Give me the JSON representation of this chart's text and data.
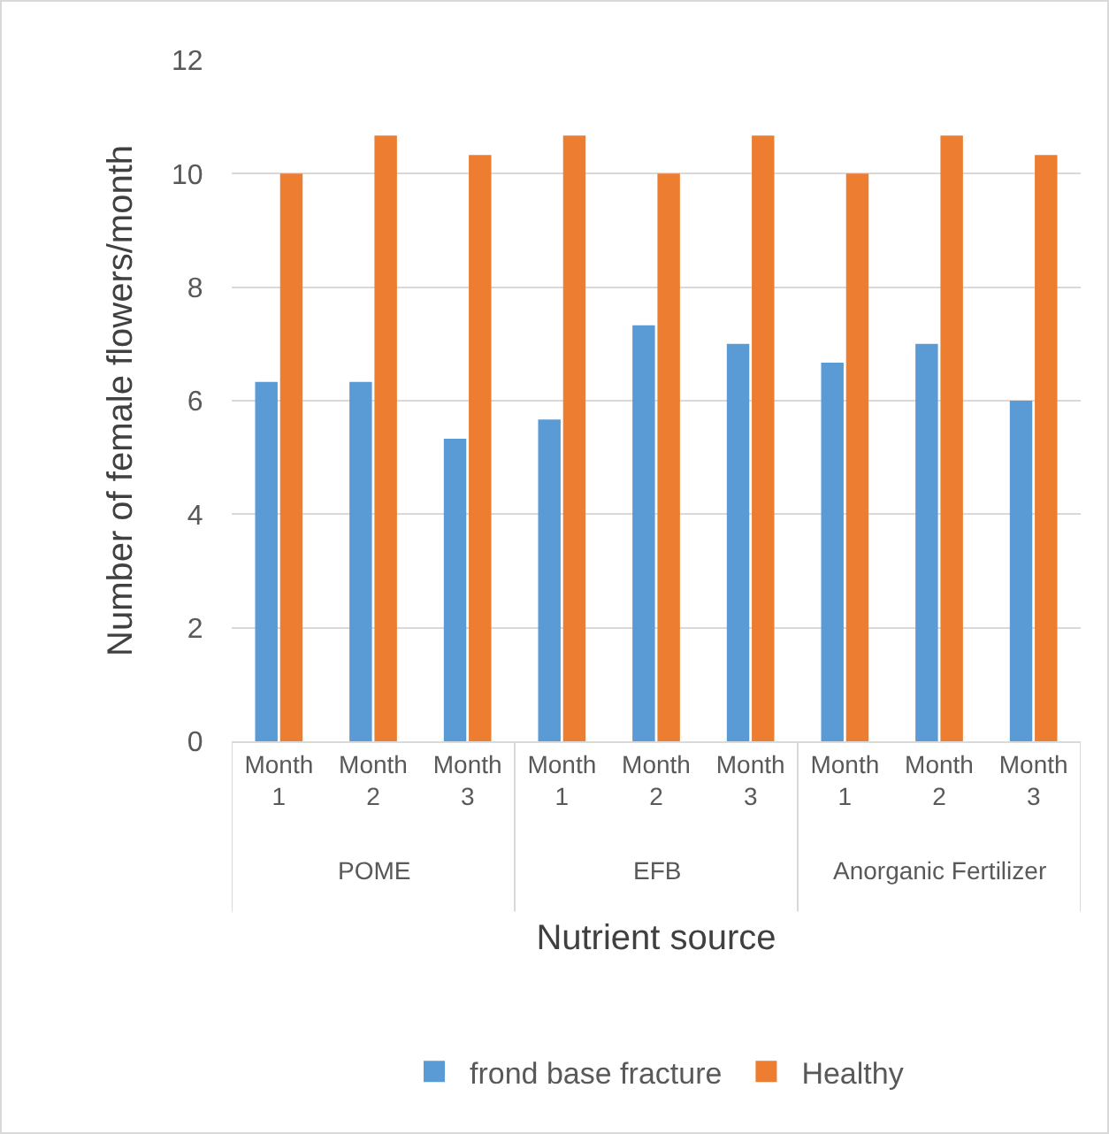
{
  "chart_data": {
    "type": "bar",
    "xlabel": "Nutrient source",
    "ylabel": "Number of female flowers/month",
    "categories": [
      "Month 1",
      "Month 2",
      "Month 3",
      "Month 1",
      "Month 2",
      "Month 3",
      "Month 1",
      "Month 2",
      "Month 3"
    ],
    "series": [
      {
        "name": "frond base fracture",
        "color": "#5b9bd5",
        "values": [
          6.33,
          6.33,
          5.33,
          5.67,
          7.33,
          7,
          6.67,
          7,
          6
        ]
      },
      {
        "name": "Healthy",
        "color": "#ed7d31",
        "values": [
          10,
          10.67,
          10.33,
          10.67,
          10,
          10.67,
          10,
          10.67,
          10.33
        ]
      }
    ],
    "annotations": [
      "POME",
      "EFB",
      "Anorganic Fertilizer"
    ],
    "ylim": [
      0,
      12
    ],
    "yticks": [
      0,
      2,
      4,
      6,
      8,
      10,
      12
    ],
    "grid": "y",
    "legend": "bottom"
  }
}
